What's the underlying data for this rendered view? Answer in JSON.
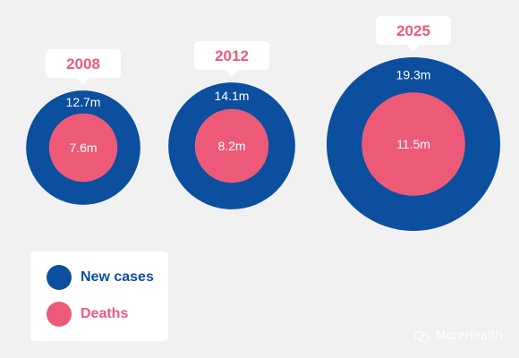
{
  "chart_data": {
    "type": "bubble",
    "title": "",
    "categories": [
      "2008",
      "2012",
      "2025"
    ],
    "series": [
      {
        "name": "New cases",
        "values": [
          12.7,
          14.1,
          19.3
        ],
        "labels": [
          "12.7m",
          "14.1m",
          "19.3m"
        ]
      },
      {
        "name": "Deaths",
        "values": [
          7.6,
          8.2,
          11.5
        ],
        "labels": [
          "7.6m",
          "8.2m",
          "11.5m"
        ]
      }
    ],
    "unit": "m",
    "legend_position": "bottom-left"
  },
  "legend": {
    "items": [
      {
        "label": "New cases",
        "color": "#0b4f9e"
      },
      {
        "label": "Deaths",
        "color": "#ed5a78"
      }
    ]
  },
  "colors": {
    "cases": "#0b4f9e",
    "deaths": "#ed5a78",
    "year_text": "#ed5a78",
    "background": "#f1f1f1",
    "callout": "#ffffff"
  },
  "watermark": {
    "icon": "wechat-icon",
    "text": "MoreHealth"
  }
}
